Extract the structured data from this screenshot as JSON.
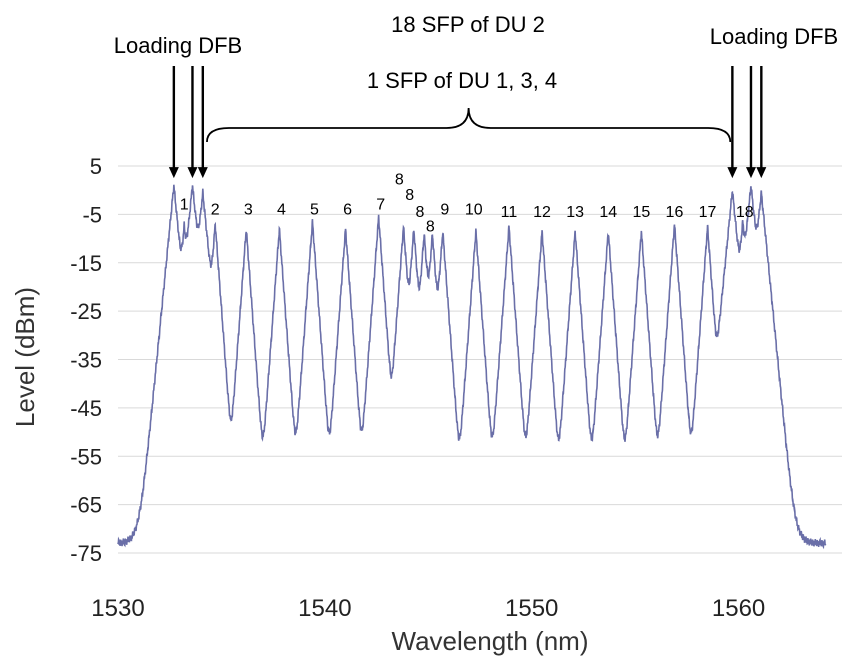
{
  "chart_data": {
    "type": "line",
    "title": "",
    "xlabel": "Wavelength (nm)",
    "ylabel": "Level (dBm)",
    "xlim": [
      1530,
      1565
    ],
    "ylim": [
      -75,
      5
    ],
    "xticks": [
      1530,
      1540,
      1550,
      1560
    ],
    "yticks": [
      5,
      -5,
      -15,
      -25,
      -35,
      -45,
      -55,
      -65,
      -75
    ],
    "grid": "horizontal",
    "series": [
      {
        "color": "#6a6fa8",
        "floor": -73,
        "peaks": [
          {
            "x": 1532.7,
            "y": 1,
            "w": 0.08
          },
          {
            "x": 1533.2,
            "y": -8,
            "w": 0.06
          },
          {
            "x": 1533.6,
            "y": 1,
            "w": 0.08
          },
          {
            "x": 1534.1,
            "y": -0.5,
            "w": 0.08
          },
          {
            "x": 1534.7,
            "y": -7,
            "w": 0.06
          },
          {
            "x": 1536.2,
            "y": -8,
            "w": 0.06
          },
          {
            "x": 1537.8,
            "y": -8,
            "w": 0.06
          },
          {
            "x": 1539.4,
            "y": -6.5,
            "w": 0.06
          },
          {
            "x": 1541.0,
            "y": -8,
            "w": 0.06
          },
          {
            "x": 1542.6,
            "y": -5.5,
            "w": 0.06
          },
          {
            "x": 1543.8,
            "y": -7.5,
            "w": 0.06
          },
          {
            "x": 1544.3,
            "y": -8,
            "w": 0.06
          },
          {
            "x": 1544.8,
            "y": -9,
            "w": 0.06
          },
          {
            "x": 1545.2,
            "y": -9,
            "w": 0.06
          },
          {
            "x": 1545.7,
            "y": -8.5,
            "w": 0.06
          },
          {
            "x": 1547.3,
            "y": -8.5,
            "w": 0.06
          },
          {
            "x": 1548.9,
            "y": -7.5,
            "w": 0.06
          },
          {
            "x": 1550.5,
            "y": -8.5,
            "w": 0.06
          },
          {
            "x": 1552.1,
            "y": -8.5,
            "w": 0.06
          },
          {
            "x": 1553.7,
            "y": -8.5,
            "w": 0.06
          },
          {
            "x": 1555.3,
            "y": -8.5,
            "w": 0.06
          },
          {
            "x": 1556.9,
            "y": -7,
            "w": 0.06
          },
          {
            "x": 1558.5,
            "y": -7.5,
            "w": 0.06
          },
          {
            "x": 1559.7,
            "y": 0,
            "w": 0.08
          },
          {
            "x": 1560.2,
            "y": -7,
            "w": 0.06
          },
          {
            "x": 1560.6,
            "y": 1,
            "w": 0.08
          },
          {
            "x": 1561.1,
            "y": -0.5,
            "w": 0.08
          }
        ]
      }
    ],
    "peak_labels": [
      {
        "text": "1",
        "x": 1533.2,
        "y": -4
      },
      {
        "text": "2",
        "x": 1534.7,
        "y": -5
      },
      {
        "text": "3",
        "x": 1536.3,
        "y": -5
      },
      {
        "text": "4",
        "x": 1537.9,
        "y": -5
      },
      {
        "text": "5",
        "x": 1539.5,
        "y": -5
      },
      {
        "text": "6",
        "x": 1541.1,
        "y": -5
      },
      {
        "text": "7",
        "x": 1542.7,
        "y": -4
      },
      {
        "text": "8",
        "x": 1543.6,
        "y": 1.2
      },
      {
        "text": "8",
        "x": 1544.1,
        "y": -2
      },
      {
        "text": "8",
        "x": 1544.6,
        "y": -5.5
      },
      {
        "text": "8",
        "x": 1545.1,
        "y": -8.5
      },
      {
        "text": "9",
        "x": 1545.8,
        "y": -5
      },
      {
        "text": "10",
        "x": 1547.2,
        "y": -5
      },
      {
        "text": "11",
        "x": 1548.9,
        "y": -5.5
      },
      {
        "text": "12",
        "x": 1550.5,
        "y": -5.5
      },
      {
        "text": "13",
        "x": 1552.1,
        "y": -5.5
      },
      {
        "text": "14",
        "x": 1553.7,
        "y": -5.5
      },
      {
        "text": "15",
        "x": 1555.3,
        "y": -5.5
      },
      {
        "text": "16",
        "x": 1556.9,
        "y": -5.5
      },
      {
        "text": "17",
        "x": 1558.5,
        "y": -5.5
      },
      {
        "text": "18",
        "x": 1560.3,
        "y": -5.5
      }
    ],
    "annotations": {
      "left_label": "Loading DFB",
      "right_label": "Loading DFB",
      "top_line1": "18 SFP of DU 2",
      "top_line2": "1 SFP of DU 1, 3, 4",
      "left_arrows_x": [
        1532.7,
        1533.6,
        1534.1
      ],
      "right_arrows_x": [
        1559.7,
        1560.6,
        1561.1
      ],
      "brace_x": [
        1534.3,
        1559.6
      ]
    }
  }
}
